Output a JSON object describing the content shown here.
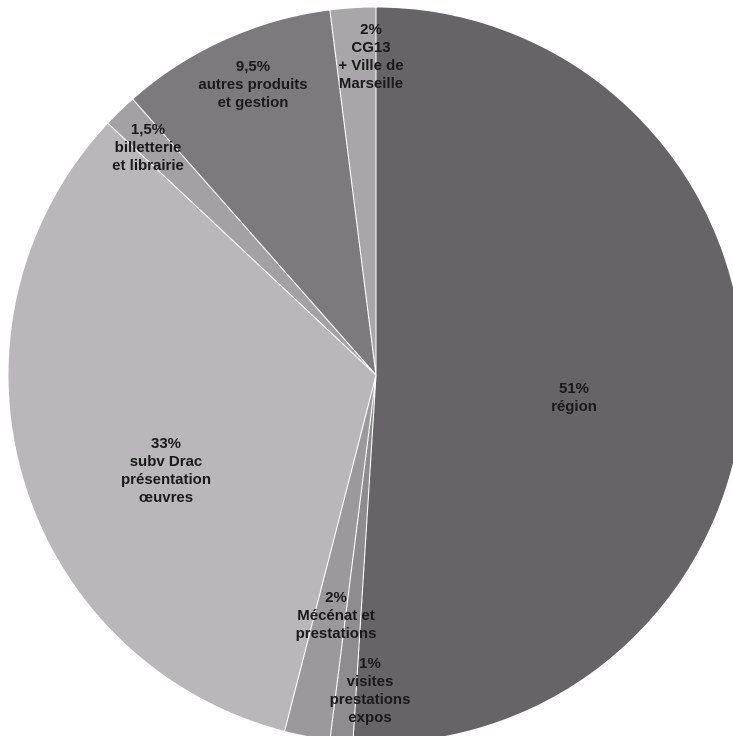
{
  "chart_data": {
    "type": "pie",
    "slices": [
      {
        "label_lines": [
          "51%",
          "région"
        ],
        "value": 51,
        "color": "#666466"
      },
      {
        "label_lines": [
          "1%",
          "visites",
          "prestations",
          "expos"
        ],
        "value": 1,
        "color": "#8e8c8e"
      },
      {
        "label_lines": [
          "2%",
          "Mécénat et",
          "prestations"
        ],
        "value": 2,
        "color": "#9b999b"
      },
      {
        "label_lines": [
          "33%",
          "subv Drac",
          "présentation",
          "œuvres"
        ],
        "value": 33,
        "color": "#b9b7b9"
      },
      {
        "label_lines": [
          "1,5%",
          "billetterie",
          "et librairie"
        ],
        "value": 1.5,
        "color": "#a3a1a3"
      },
      {
        "label_lines": [
          "9,5%",
          "autres produits",
          "et gestion"
        ],
        "value": 9.5,
        "color": "#7c7a7c"
      },
      {
        "label_lines": [
          "2%",
          "CG13",
          "+ Ville de",
          "Marseille"
        ],
        "value": 2,
        "color": "#a8a6a8"
      }
    ]
  }
}
